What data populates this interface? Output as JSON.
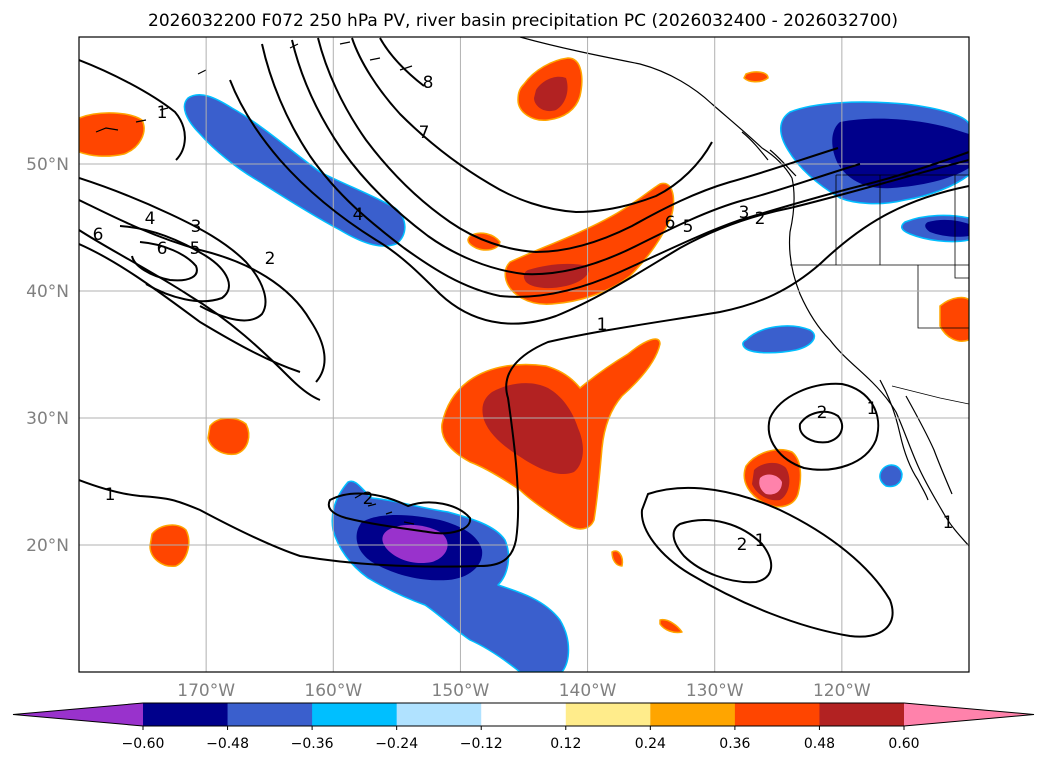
{
  "title": "2026032200 F072 250 hPa PV, river basin precipitation PC (2026032400 - 2026032700)",
  "map": {
    "projection": "plate carree",
    "lon_range": [
      -180,
      -110
    ],
    "lat_range": [
      10,
      60
    ],
    "gridlines": true,
    "lon_ticks": [
      {
        "value": -170,
        "label": "170°W"
      },
      {
        "value": -160,
        "label": "160°W"
      },
      {
        "value": -150,
        "label": "150°W"
      },
      {
        "value": -140,
        "label": "140°W"
      },
      {
        "value": -130,
        "label": "130°W"
      },
      {
        "value": -120,
        "label": "120°W"
      }
    ],
    "lat_ticks": [
      {
        "value": 50,
        "label": "50°N"
      },
      {
        "value": 40,
        "label": "40°N"
      },
      {
        "value": 30,
        "label": "30°N"
      },
      {
        "value": 20,
        "label": "20°N"
      }
    ]
  },
  "colorbar": {
    "extend": "both",
    "colors": [
      "#9932cc",
      "#00008b",
      "#3a5fcd",
      "#00bfff",
      "#b0e2ff",
      "#ffffff",
      "#ffec8b",
      "#ffa500",
      "#ff4500",
      "#b22222",
      "#ff82ab"
    ],
    "tick_labels": [
      "−0.60",
      "−0.48",
      "−0.36",
      "−0.24",
      "−0.12",
      "0.12",
      "0.24",
      "0.36",
      "0.48",
      "0.60"
    ]
  },
  "precip_regions": [
    {
      "name": "hawaii-negative-anomaly",
      "value": -0.45,
      "peak": -0.62
    },
    {
      "name": "aleutian-negative-band",
      "value": -0.4
    },
    {
      "name": "pacific-northwest-negative",
      "value": -0.5,
      "peak": -0.55
    },
    {
      "name": "subtropical-positive-blob",
      "value": 0.42,
      "peak": 0.52
    },
    {
      "name": "northeast-pacific-positive-band",
      "value": 0.42
    },
    {
      "name": "gulf-of-alaska-positive",
      "value": 0.45
    },
    {
      "name": "baja-positive-cell",
      "value": 0.45,
      "peak": 0.62
    },
    {
      "name": "small-southern-california-negative",
      "value": -0.4
    }
  ],
  "pv_contour_labels": [
    "1",
    "2",
    "3",
    "4",
    "5",
    "6",
    "7",
    "8"
  ]
}
